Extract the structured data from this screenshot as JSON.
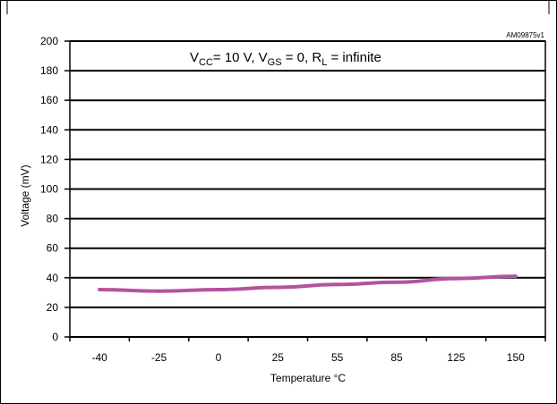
{
  "chart_data": {
    "type": "line",
    "code": "AM09875v1",
    "condition": {
      "vcc_label": "V",
      "vcc_sub": "CC",
      "vcc_value": "= 10 V, ",
      "vgs_label": "V",
      "vgs_sub": "GS",
      "vgs_value": " = 0, ",
      "rl_label": "R",
      "rl_sub": "L",
      "rl_value": " = infinite"
    },
    "xlabel": "Temperature °C",
    "ylabel": "Voltage  (mV)",
    "categories": [
      "-40",
      "-25",
      "0",
      "25",
      "55",
      "85",
      "125",
      "150"
    ],
    "yticks": [
      "0",
      "20",
      "40",
      "60",
      "80",
      "100",
      "120",
      "140",
      "160",
      "180",
      "200"
    ],
    "ylim": [
      0,
      200
    ],
    "series": [
      {
        "values": [
          32,
          31,
          32,
          33.5,
          35.5,
          37,
          39.5,
          41
        ]
      }
    ],
    "color": "#b5529f",
    "grid": true
  }
}
